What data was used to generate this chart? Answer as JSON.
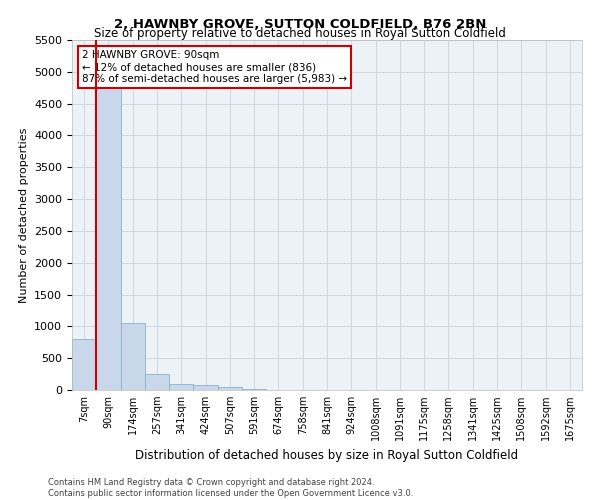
{
  "title1": "2, HAWNBY GROVE, SUTTON COLDFIELD, B76 2BN",
  "title2": "Size of property relative to detached houses in Royal Sutton Coldfield",
  "xlabel": "Distribution of detached houses by size in Royal Sutton Coldfield",
  "ylabel": "Number of detached properties",
  "footnote1": "Contains HM Land Registry data © Crown copyright and database right 2024.",
  "footnote2": "Contains public sector information licensed under the Open Government Licence v3.0.",
  "annotation_title": "2 HAWNBY GROVE: 90sqm",
  "annotation_line1": "← 12% of detached houses are smaller (836)",
  "annotation_line2": "87% of semi-detached houses are larger (5,983) →",
  "bar_color": "#c8d8ea",
  "bar_edge_color": "#7aaac8",
  "highlight_line_color": "#cc0000",
  "categories": [
    "7sqm",
    "90sqm",
    "174sqm",
    "257sqm",
    "341sqm",
    "424sqm",
    "507sqm",
    "591sqm",
    "674sqm",
    "758sqm",
    "841sqm",
    "924sqm",
    "1008sqm",
    "1091sqm",
    "1175sqm",
    "1258sqm",
    "1341sqm",
    "1425sqm",
    "1508sqm",
    "1592sqm",
    "1675sqm"
  ],
  "values": [
    800,
    5100,
    1050,
    250,
    100,
    80,
    50,
    15,
    0,
    0,
    0,
    0,
    0,
    0,
    0,
    0,
    0,
    0,
    0,
    0,
    0
  ],
  "ylim": [
    0,
    5500
  ],
  "yticks": [
    0,
    500,
    1000,
    1500,
    2000,
    2500,
    3000,
    3500,
    4000,
    4500,
    5000,
    5500
  ],
  "grid_color": "#d0d8e4",
  "bg_color": "#edf2f7",
  "annotation_box_edge": "#cc0000",
  "highlight_bar_index": 1,
  "bar_width": 1.0
}
